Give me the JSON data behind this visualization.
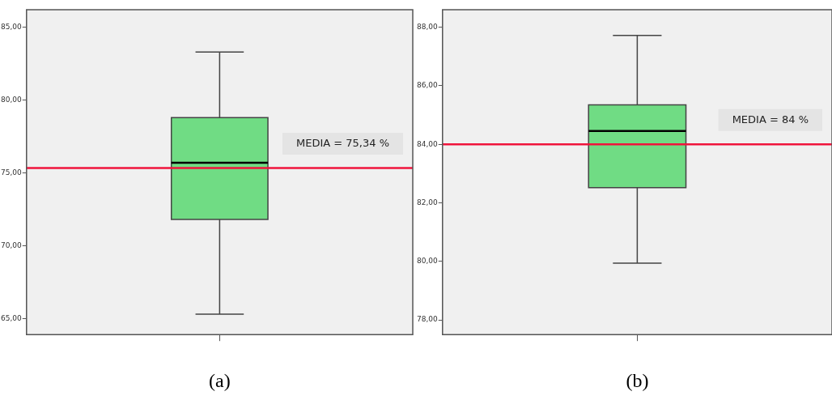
{
  "chart_data": [
    {
      "type": "box",
      "categories": [
        null
      ],
      "xlabel": "(a)",
      "color": "#70dc84",
      "boxes": [
        {
          "low": 65.3,
          "q1": 71.8,
          "median": 75.7,
          "q3": 78.8,
          "high": 83.3
        }
      ],
      "ylim": [
        63.9,
        86.2
      ],
      "yticks": [
        {
          "value": 65,
          "label": "65,00"
        },
        {
          "value": 70,
          "label": "70,00"
        },
        {
          "value": 75,
          "label": "75,00"
        },
        {
          "value": 80,
          "label": "80,00"
        },
        {
          "value": 85,
          "label": "85,00"
        }
      ],
      "ref_lines": [
        {
          "axis": "y",
          "value": 75.34,
          "label": "MEDIA = 75,34 %",
          "color": "#f0143c"
        }
      ]
    },
    {
      "type": "box",
      "categories": [
        null
      ],
      "xlabel": "(b)",
      "color": "#70dc84",
      "boxes": [
        {
          "low": 79.94,
          "q1": 82.52,
          "median": 84.46,
          "q3": 85.35,
          "high": 87.72
        }
      ],
      "ylim": [
        77.5,
        88.6
      ],
      "yticks": [
        {
          "value": 78,
          "label": "78,00"
        },
        {
          "value": 80,
          "label": "80,00"
        },
        {
          "value": 82,
          "label": "82,00"
        },
        {
          "value": 84,
          "label": "84,00"
        },
        {
          "value": 86,
          "label": "86,00"
        },
        {
          "value": 88,
          "label": "88,00"
        }
      ],
      "ref_lines": [
        {
          "axis": "y",
          "value": 84,
          "label": "MEDIA = 84 %",
          "color": "#f0143c"
        }
      ]
    }
  ]
}
